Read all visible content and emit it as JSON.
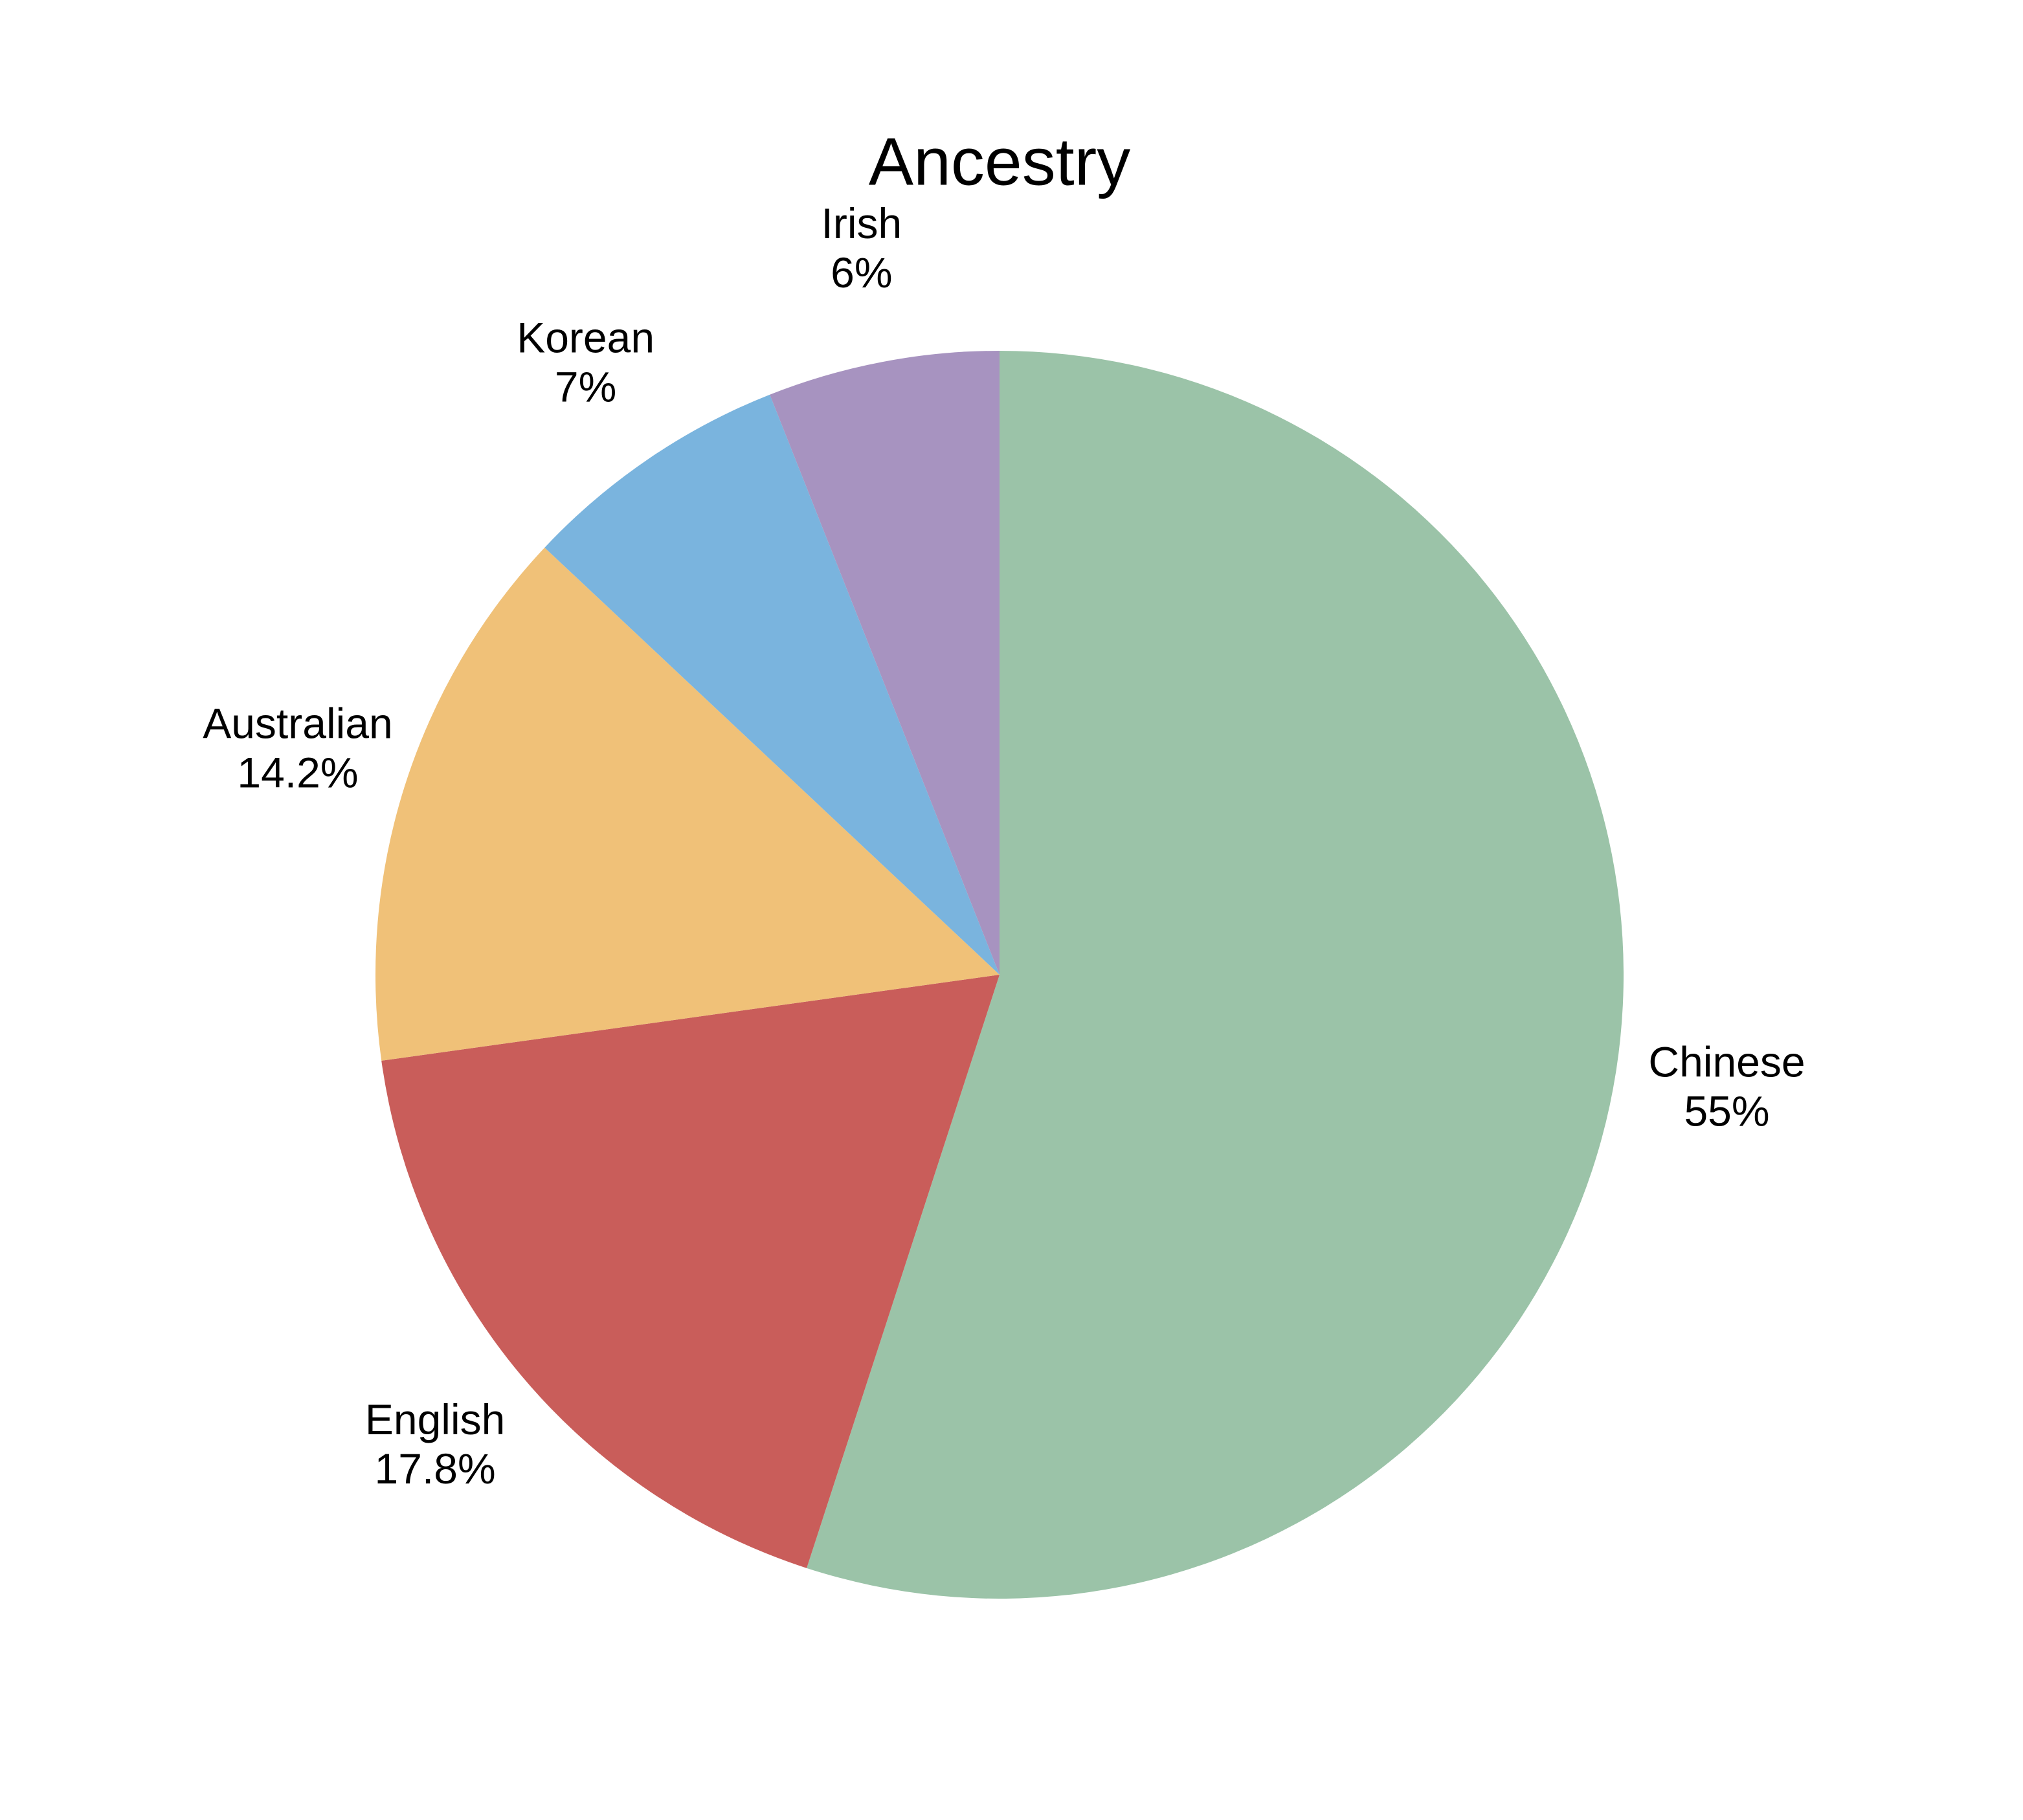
{
  "chart_data": {
    "type": "pie",
    "title": "Ancestry",
    "categories": [
      "Chinese",
      "English",
      "Australian",
      "Korean",
      "Irish"
    ],
    "values": [
      55,
      17.8,
      14.2,
      7,
      6
    ],
    "value_labels": [
      "55%",
      "17.8%",
      "14.2%",
      "7%",
      "6%"
    ],
    "colors": [
      "#9bc3a8",
      "#c95d5a",
      "#f0c178",
      "#7ab4de",
      "#a793c0"
    ]
  }
}
